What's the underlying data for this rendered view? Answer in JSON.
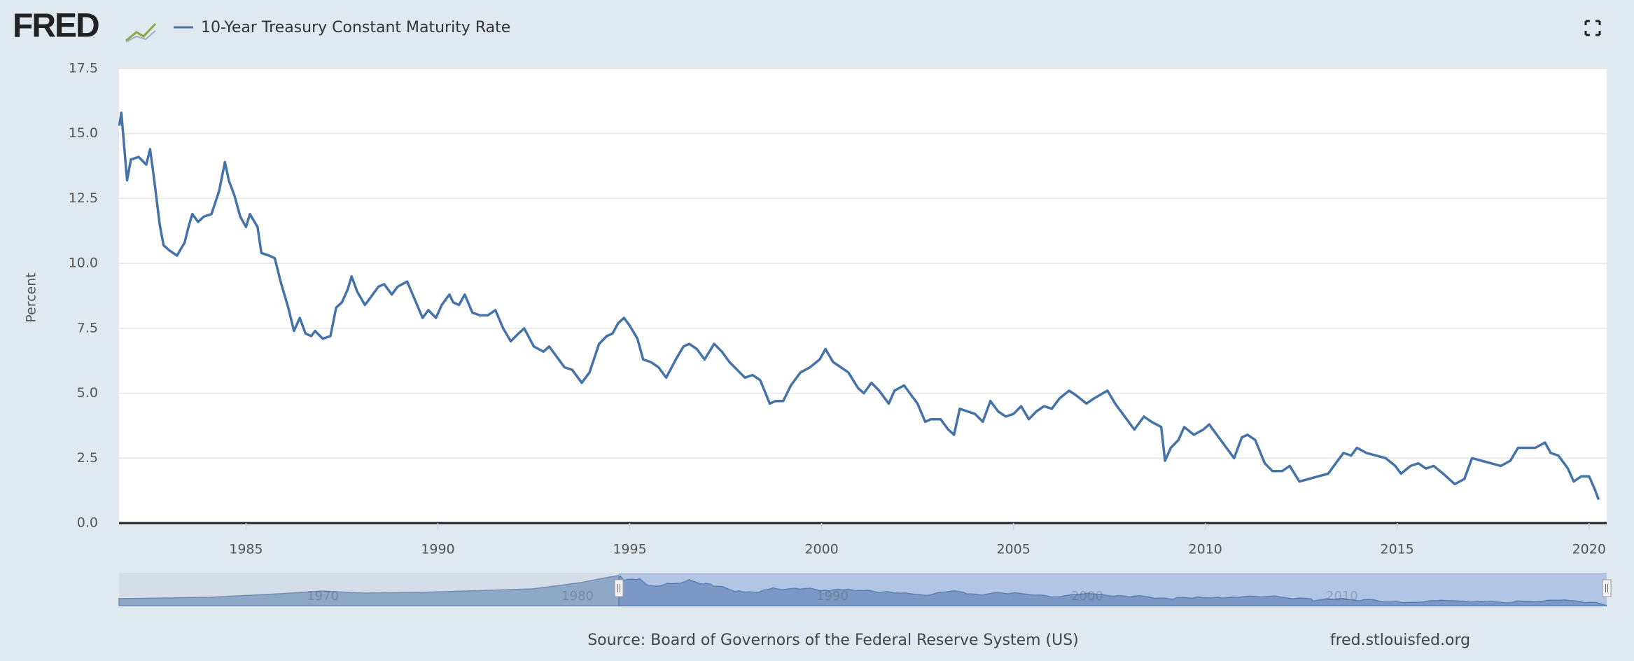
{
  "logo": "FRED",
  "chart_data": {
    "type": "line",
    "ylabel": "Percent",
    "source": "Source: Board of Governors of the Federal Reserve System (US)",
    "site": "fred.stlouisfed.org",
    "navigator_labels": [
      "1970",
      "1980",
      "1990",
      "2000",
      "2010"
    ],
    "grid": true,
    "xlim": [
      1981.69,
      2020.46
    ],
    "xticks": [
      1985,
      1990,
      1995,
      2000,
      2005,
      2010,
      2015,
      2020
    ],
    "ylim": [
      0,
      17.5
    ],
    "yticks": [
      {
        "value": 0,
        "label": "0.0"
      },
      2.5,
      {
        "value": 5,
        "label": "5.0"
      },
      7.5,
      {
        "value": 10,
        "label": "10.0"
      },
      12.5,
      {
        "value": 15,
        "label": "15.0"
      },
      17.5
    ],
    "series": [
      {
        "name": "10-Year Treasury Constant Maturity Rate",
        "color": "#4572a7",
        "x": [
          1981.7,
          1981.75,
          1981.9,
          1982.0,
          1982.2,
          1982.4,
          1982.5,
          1982.6,
          1982.75,
          1982.85,
          1983.0,
          1983.2,
          1983.4,
          1983.5,
          1983.6,
          1983.75,
          1983.9,
          1984.1,
          1984.3,
          1984.45,
          1984.55,
          1984.7,
          1984.85,
          1985.0,
          1985.1,
          1985.3,
          1985.4,
          1985.6,
          1985.75,
          1985.9,
          1986.1,
          1986.25,
          1986.4,
          1986.55,
          1986.7,
          1986.8,
          1987.0,
          1987.2,
          1987.35,
          1987.5,
          1987.65,
          1987.75,
          1987.9,
          1988.1,
          1988.25,
          1988.45,
          1988.6,
          1988.8,
          1988.95,
          1989.2,
          1989.4,
          1989.6,
          1989.75,
          1989.95,
          1990.1,
          1990.3,
          1990.4,
          1990.55,
          1990.7,
          1990.9,
          1991.1,
          1991.3,
          1991.5,
          1991.7,
          1991.9,
          1992.1,
          1992.25,
          1992.5,
          1992.75,
          1992.9,
          1993.1,
          1993.3,
          1993.5,
          1993.75,
          1993.95,
          1994.2,
          1994.4,
          1994.55,
          1994.7,
          1994.85,
          1995.0,
          1995.2,
          1995.35,
          1995.55,
          1995.75,
          1995.95,
          1996.2,
          1996.4,
          1996.55,
          1996.75,
          1996.95,
          1997.2,
          1997.4,
          1997.6,
          1997.8,
          1998.0,
          1998.2,
          1998.4,
          1998.65,
          1998.8,
          1999.0,
          1999.2,
          1999.45,
          1999.7,
          1999.95,
          2000.1,
          2000.3,
          2000.5,
          2000.7,
          2000.95,
          2001.1,
          2001.3,
          2001.5,
          2001.75,
          2001.9,
          2002.15,
          2002.3,
          2002.5,
          2002.7,
          2002.85,
          2003.1,
          2003.3,
          2003.45,
          2003.6,
          2003.8,
          2004.0,
          2004.2,
          2004.4,
          2004.6,
          2004.8,
          2005.0,
          2005.2,
          2005.4,
          2005.6,
          2005.8,
          2006.0,
          2006.2,
          2006.45,
          2006.65,
          2006.9,
          2007.1,
          2007.45,
          2007.65,
          2007.9,
          2008.15,
          2008.4,
          2008.6,
          2008.85,
          2008.95,
          2009.1,
          2009.3,
          2009.45,
          2009.7,
          2009.95,
          2010.1,
          2010.3,
          2010.55,
          2010.75,
          2010.95,
          2011.1,
          2011.3,
          2011.55,
          2011.75,
          2012.0,
          2012.2,
          2012.45,
          2012.7,
          2012.95,
          2013.2,
          2013.4,
          2013.6,
          2013.8,
          2013.95,
          2014.2,
          2014.45,
          2014.7,
          2014.95,
          2015.1,
          2015.35,
          2015.55,
          2015.75,
          2015.95,
          2016.2,
          2016.5,
          2016.75,
          2016.95,
          2017.2,
          2017.45,
          2017.7,
          2017.95,
          2018.15,
          2018.4,
          2018.6,
          2018.85,
          2019.0,
          2019.2,
          2019.45,
          2019.6,
          2019.8,
          2020.0,
          2020.15,
          2020.25
        ],
        "values": [
          15.3,
          15.8,
          13.2,
          14.0,
          14.1,
          13.8,
          14.4,
          13.3,
          11.5,
          10.7,
          10.5,
          10.3,
          10.8,
          11.4,
          11.9,
          11.6,
          11.8,
          11.9,
          12.8,
          13.9,
          13.2,
          12.6,
          11.8,
          11.4,
          11.9,
          11.4,
          10.4,
          10.3,
          10.2,
          9.3,
          8.3,
          7.4,
          7.9,
          7.3,
          7.2,
          7.4,
          7.1,
          7.2,
          8.3,
          8.5,
          9.0,
          9.5,
          8.9,
          8.4,
          8.7,
          9.1,
          9.2,
          8.8,
          9.1,
          9.3,
          8.6,
          7.9,
          8.2,
          7.9,
          8.4,
          8.8,
          8.5,
          8.4,
          8.8,
          8.1,
          8.0,
          8.0,
          8.2,
          7.5,
          7.0,
          7.3,
          7.5,
          6.8,
          6.6,
          6.8,
          6.4,
          6.0,
          5.9,
          5.4,
          5.8,
          6.9,
          7.2,
          7.3,
          7.7,
          7.9,
          7.6,
          7.1,
          6.3,
          6.2,
          6.0,
          5.6,
          6.3,
          6.8,
          6.9,
          6.7,
          6.3,
          6.9,
          6.6,
          6.2,
          5.9,
          5.6,
          5.7,
          5.5,
          4.6,
          4.7,
          4.7,
          5.3,
          5.8,
          6.0,
          6.3,
          6.7,
          6.2,
          6.0,
          5.8,
          5.2,
          5.0,
          5.4,
          5.1,
          4.6,
          5.1,
          5.3,
          5.0,
          4.6,
          3.9,
          4.0,
          4.0,
          3.6,
          3.4,
          4.4,
          4.3,
          4.2,
          3.9,
          4.7,
          4.3,
          4.1,
          4.2,
          4.5,
          4.0,
          4.3,
          4.5,
          4.4,
          4.8,
          5.1,
          4.9,
          4.6,
          4.8,
          5.1,
          4.6,
          4.1,
          3.6,
          4.1,
          3.9,
          3.7,
          2.4,
          2.9,
          3.2,
          3.7,
          3.4,
          3.6,
          3.8,
          3.4,
          2.9,
          2.5,
          3.3,
          3.4,
          3.2,
          2.3,
          2.0,
          2.0,
          2.2,
          1.6,
          1.7,
          1.8,
          1.9,
          2.3,
          2.7,
          2.6,
          2.9,
          2.7,
          2.6,
          2.5,
          2.2,
          1.9,
          2.2,
          2.3,
          2.1,
          2.2,
          1.9,
          1.5,
          1.7,
          2.5,
          2.4,
          2.3,
          2.2,
          2.4,
          2.9,
          2.9,
          2.9,
          3.1,
          2.7,
          2.6,
          2.1,
          1.6,
          1.8,
          1.8,
          1.3,
          0.9
        ]
      }
    ]
  }
}
